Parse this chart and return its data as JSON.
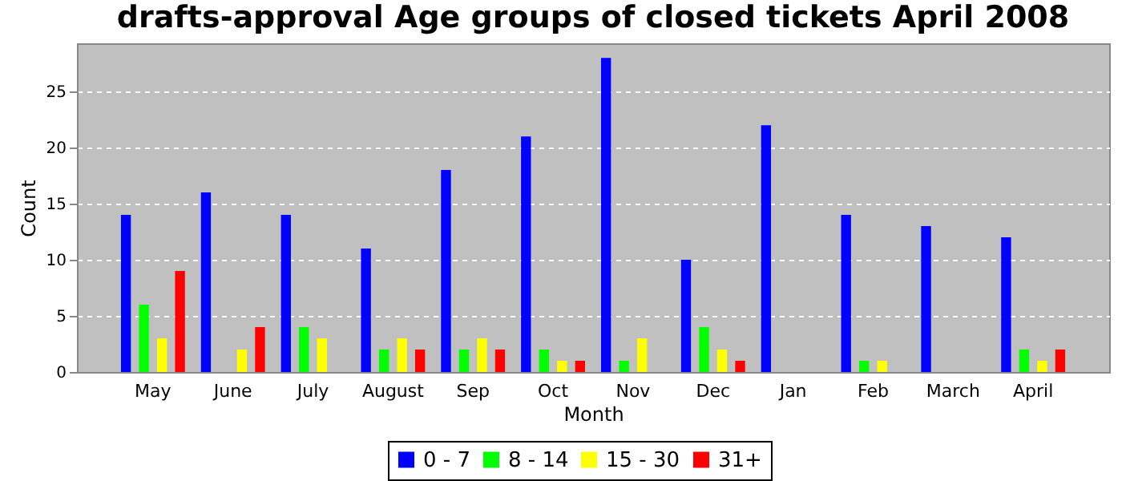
{
  "chart_data": {
    "type": "bar",
    "title": "drafts-approval Age groups of closed tickets April 2008",
    "xlabel": "Month",
    "ylabel": "Count",
    "categories": [
      "May",
      "June",
      "July",
      "August",
      "Sep",
      "Oct",
      "Nov",
      "Dec",
      "Jan",
      "Feb",
      "March",
      "April"
    ],
    "series": [
      {
        "name": "0 - 7",
        "color": "#0000ff",
        "values": [
          14,
          16,
          14,
          11,
          18,
          21,
          28,
          10,
          22,
          14,
          13,
          12
        ]
      },
      {
        "name": "8 - 14",
        "color": "#00ff00",
        "values": [
          6,
          0,
          4,
          2,
          2,
          2,
          1,
          4,
          0,
          1,
          0,
          2
        ]
      },
      {
        "name": "15 - 30",
        "color": "#ffff00",
        "values": [
          3,
          2,
          3,
          3,
          3,
          1,
          3,
          2,
          0,
          1,
          0,
          1
        ]
      },
      {
        "name": "31+",
        "color": "#ff0000",
        "values": [
          9,
          4,
          0,
          2,
          2,
          1,
          0,
          1,
          0,
          0,
          0,
          2
        ]
      }
    ],
    "ylim": [
      0,
      29.3
    ],
    "yticks": [
      0,
      5,
      10,
      15,
      20,
      25
    ],
    "grid": "y",
    "legend": "bottom"
  }
}
